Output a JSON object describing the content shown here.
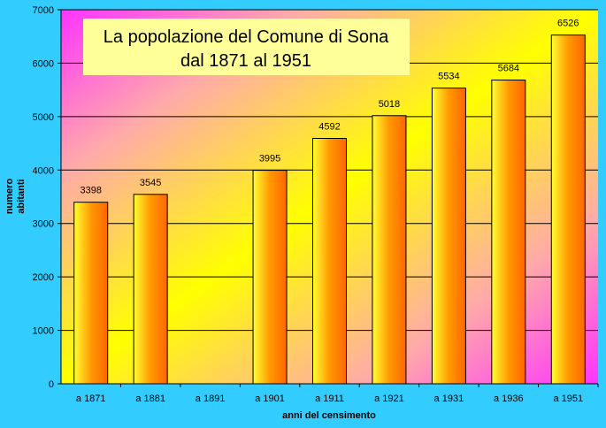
{
  "chart_data": {
    "type": "bar",
    "title_line1": "La popolazione del Comune di Sona",
    "title_line2": "dal 1871 al 1951",
    "xlabel": "anni del censimento",
    "ylabel_line1": "numero",
    "ylabel_line2": "abitanti",
    "ylim": [
      0,
      7000
    ],
    "yticks": [
      0,
      1000,
      2000,
      3000,
      4000,
      5000,
      6000,
      7000
    ],
    "grid": true,
    "categories": [
      "a 1871",
      "a 1881",
      "a 1891",
      "a 1901",
      "a 1911",
      "a 1921",
      "a 1931",
      "a 1936",
      "a 1951"
    ],
    "values": [
      3398,
      3545,
      null,
      3995,
      4592,
      5018,
      5534,
      5684,
      6526
    ],
    "data_labels": [
      "3398",
      "3545",
      "",
      "3995",
      "4592",
      "5018",
      "5534",
      "5684",
      "6526"
    ],
    "colors": {
      "background": "#33ccff",
      "plot_gradient": [
        "#ff44ff",
        "#ffaaaa",
        "#ffff00",
        "#ff33ff"
      ],
      "bar_gradient": [
        "#ffff33",
        "#ff9900",
        "#ff6600"
      ],
      "title_box": "#ffff99"
    }
  }
}
